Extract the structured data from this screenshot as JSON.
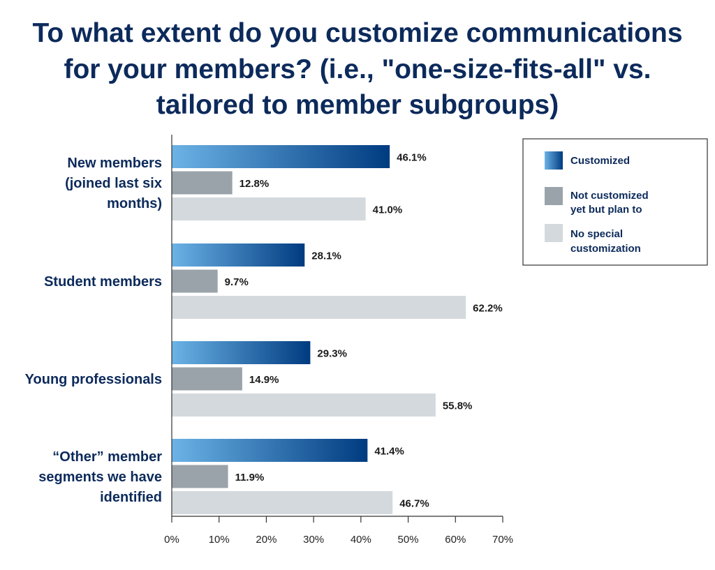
{
  "chart_data": {
    "type": "bar",
    "orientation": "horizontal",
    "title": [
      "To what extent do you customize communications",
      "for your members? (i.e., \"one-size-fits-all\" vs.",
      "tailored to member subgroups)"
    ],
    "categories": [
      [
        "New members",
        "(joined last six",
        "months)"
      ],
      [
        "Student members"
      ],
      [
        "Young professionals"
      ],
      [
        "“Other” member",
        "segments we have",
        "identified"
      ]
    ],
    "series": [
      {
        "name": "Customized",
        "values": [
          46.1,
          28.1,
          29.3,
          41.4
        ],
        "labels": [
          "46.1%",
          "28.1%",
          "29.3%",
          "41.4%"
        ],
        "color_start": "#6cb3e6",
        "color_end": "#003b80"
      },
      {
        "name": "Not customized yet but plan to",
        "legend_lines": [
          "Not customized",
          "yet but plan to"
        ],
        "values": [
          12.8,
          9.7,
          14.9,
          11.9
        ],
        "labels": [
          "12.8%",
          "9.7%",
          "14.9%",
          "11.9%"
        ],
        "color": "#9aa3aa"
      },
      {
        "name": "No special customization",
        "legend_lines": [
          "No special",
          "customization"
        ],
        "values": [
          41.0,
          62.2,
          55.8,
          46.7
        ],
        "labels": [
          "41.0%",
          "62.2%",
          "55.8%",
          "46.7%"
        ],
        "color": "#d3d9dd"
      }
    ],
    "xlim": [
      0,
      70
    ],
    "ticks": [
      0,
      10,
      20,
      30,
      40,
      50,
      60,
      70
    ],
    "tick_labels": [
      "0%",
      "10%",
      "20%",
      "30%",
      "40%",
      "50%",
      "60%",
      "70%"
    ],
    "legend_position": "top-right",
    "grid": false,
    "colors": {
      "title": "#0c2a5b",
      "category_label": "#0c2a5b",
      "value_label": "#1a1a1a",
      "legend_text": "#0c2a5b",
      "axis": "#333333"
    }
  }
}
